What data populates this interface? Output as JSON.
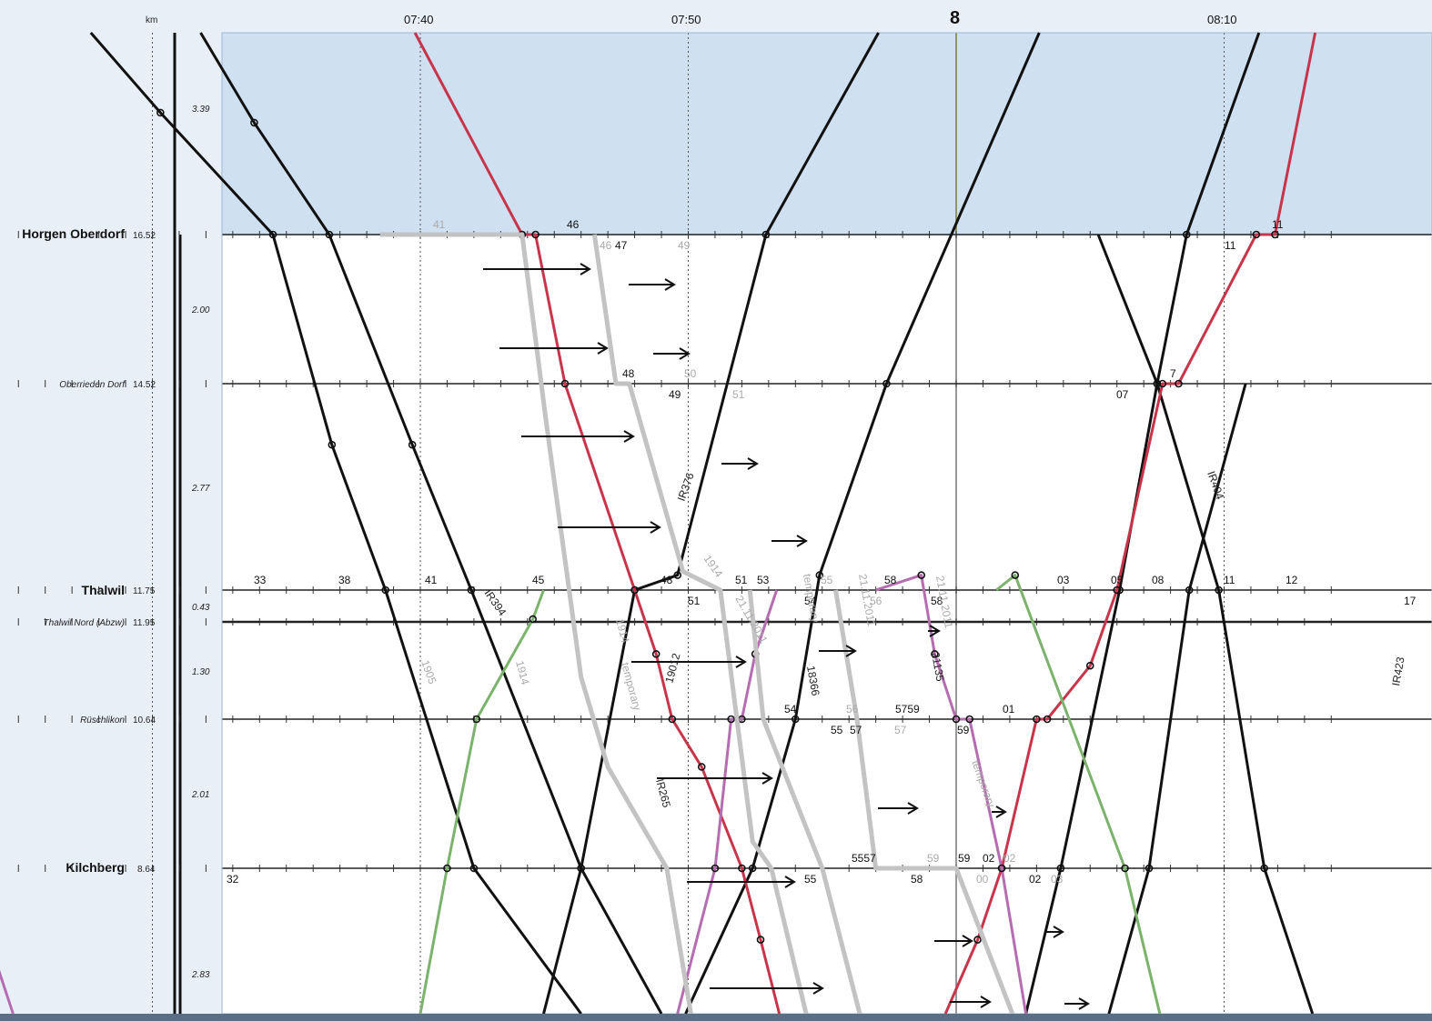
{
  "header": {
    "km_unit": "km",
    "hour_label": "8",
    "time_ticks": [
      "07:40",
      "07:50",
      "08:10"
    ]
  },
  "stations": [
    {
      "name": "Horgen Oberdorf",
      "km": "16.52",
      "major": true
    },
    {
      "name": "Oberrieden Dorf",
      "km": "14.52",
      "major": false
    },
    {
      "name": "Thalwil",
      "km": "11.75",
      "major": true
    },
    {
      "name": "Thalwil Nord (Abzw)",
      "km": "11.95",
      "major": false
    },
    {
      "name": "Rüschlikon",
      "km": "10.64",
      "major": false
    },
    {
      "name": "Kilchberg",
      "km": "8.64",
      "major": true
    }
  ],
  "segment_distances": [
    "3.39",
    "2.00",
    "2.77",
    "0.43",
    "1.30",
    "2.01",
    "2.83"
  ],
  "colors": {
    "background": "#e9eff7",
    "occupied_block": "#cfe0f1",
    "black_train": "#111111",
    "red_train": "#c8354a",
    "green_train": "#7cb36c",
    "purple_train": "#b56cb0",
    "grey_train": "#c3c3c3",
    "status_bar": "#5a6f86"
  },
  "chart_data": {
    "type": "line",
    "title": "",
    "xlabel": "",
    "ylabel": "km",
    "x_unit": "minutes after 07:30",
    "xlim": [
      -7.4,
      44.5
    ],
    "series": [
      {
        "color": "black",
        "points": [
          [
            -2.3,
            24.6
          ],
          [
            0.3,
            21.4
          ],
          [
            4.5,
            16.52
          ],
          [
            6.7,
            13.7
          ],
          [
            8.7,
            11.75
          ],
          [
            12.0,
            8.64
          ],
          [
            16.0,
            5.1
          ]
        ]
      },
      {
        "color": "black",
        "points": [
          [
            1.8,
            24.6
          ],
          [
            3.8,
            21.0
          ],
          [
            6.6,
            16.52
          ],
          [
            9.7,
            13.7
          ],
          [
            11.9,
            11.75
          ],
          [
            16.0,
            8.64
          ],
          [
            19.0,
            5.3
          ]
        ]
      },
      {
        "color": "black",
        "points": [
          [
            19.9,
            5.3
          ],
          [
            22.4,
            8.64
          ],
          [
            24.0,
            10.64
          ],
          [
            24.9,
            11.95
          ],
          [
            27.4,
            14.52
          ],
          [
            33.1,
            24.6
          ]
        ]
      },
      {
        "color": "black",
        "points": [
          [
            14.6,
            5.3
          ],
          [
            16.0,
            8.64
          ],
          [
            18.0,
            11.75
          ],
          [
            19.6,
            11.95
          ],
          [
            22.9,
            16.52
          ],
          [
            27.1,
            24.6
          ]
        ]
      },
      {
        "color": "black",
        "points": [
          [
            41.3,
            24.6
          ],
          [
            38.6,
            16.52
          ],
          [
            37.5,
            14.52
          ],
          [
            36.1,
            11.75
          ],
          [
            33.9,
            8.64
          ],
          [
            32.6,
            5.3
          ]
        ]
      },
      {
        "color": "black",
        "points": [
          [
            43.3,
            5.3
          ],
          [
            41.5,
            8.64
          ],
          [
            39.8,
            11.75
          ],
          [
            37.5,
            14.52
          ],
          [
            35.3,
            16.52
          ]
        ]
      },
      {
        "color": "black",
        "points": [
          [
            35.7,
            5.3
          ],
          [
            37.2,
            8.64
          ],
          [
            38.7,
            11.75
          ],
          [
            40.8,
            14.52
          ]
        ]
      },
      {
        "color": "red",
        "points": [
          [
            9.8,
            24.6
          ],
          [
            13.8,
            16.52
          ],
          [
            14.3,
            16.52
          ],
          [
            15.4,
            14.52
          ],
          [
            18.0,
            11.75
          ],
          [
            18.8,
            11.2
          ],
          [
            19.4,
            10.64
          ],
          [
            20.5,
            10.0
          ],
          [
            22.0,
            8.64
          ],
          [
            22.7,
            7.0
          ],
          [
            23.4,
            5.3
          ]
        ]
      },
      {
        "color": "red",
        "points": [
          [
            43.4,
            24.6
          ],
          [
            41.9,
            16.52
          ],
          [
            41.2,
            16.52
          ],
          [
            38.3,
            14.52
          ],
          [
            37.7,
            14.52
          ],
          [
            36.0,
            11.75
          ],
          [
            35.0,
            11.1
          ],
          [
            33.4,
            10.64
          ],
          [
            33.0,
            10.64
          ],
          [
            31.7,
            8.64
          ],
          [
            30.8,
            7.0
          ],
          [
            29.6,
            5.3
          ]
        ]
      },
      {
        "color": "green",
        "points": [
          [
            10.0,
            5.3
          ],
          [
            11.0,
            8.64
          ],
          [
            12.1,
            10.64
          ],
          [
            14.2,
            11.5
          ],
          [
            14.6,
            11.75
          ]
        ]
      },
      {
        "color": "green",
        "points": [
          [
            31.5,
            11.75
          ],
          [
            32.2,
            11.95
          ],
          [
            36.3,
            8.64
          ],
          [
            37.6,
            5.3
          ]
        ]
      },
      {
        "color": "purple",
        "points": [
          [
            -7.0,
            11.75
          ],
          [
            -6.4,
            11.75
          ]
        ]
      },
      {
        "color": "purple",
        "points": [
          [
            -7.0,
            8.64
          ],
          [
            -5.2,
            5.3
          ]
        ]
      },
      {
        "color": "purple",
        "points": [
          [
            19.6,
            5.3
          ],
          [
            21.0,
            8.64
          ],
          [
            21.6,
            10.64
          ],
          [
            22.0,
            10.64
          ],
          [
            22.5,
            11.2
          ],
          [
            23.3,
            11.75
          ]
        ]
      },
      {
        "color": "purple",
        "points": [
          [
            27.0,
            11.75
          ],
          [
            28.7,
            11.95
          ],
          [
            29.2,
            11.2
          ],
          [
            30.0,
            10.64
          ],
          [
            30.5,
            10.64
          ],
          [
            31.7,
            8.64
          ],
          [
            32.6,
            5.3
          ]
        ]
      },
      {
        "color": "grey",
        "points": [
          [
            8.5,
            16.52
          ],
          [
            13.8,
            16.52
          ],
          [
            14.7,
            14.0
          ],
          [
            16.0,
            11.0
          ],
          [
            17.0,
            10.0
          ],
          [
            19.2,
            8.64
          ],
          [
            20.1,
            5.3
          ]
        ]
      },
      {
        "color": "grey",
        "points": [
          [
            16.5,
            16.52
          ],
          [
            17.3,
            14.52
          ],
          [
            17.8,
            14.52
          ],
          [
            19.8,
            12.0
          ],
          [
            21.2,
            11.75
          ],
          [
            22.4,
            9.0
          ],
          [
            23.1,
            8.64
          ],
          [
            24.4,
            5.3
          ]
        ]
      },
      {
        "color": "grey",
        "points": [
          [
            22.3,
            11.75
          ],
          [
            22.8,
            10.64
          ],
          [
            25.0,
            8.64
          ],
          [
            26.4,
            5.3
          ]
        ]
      },
      {
        "color": "grey",
        "points": [
          [
            25.5,
            11.75
          ],
          [
            26.3,
            10.64
          ],
          [
            27.0,
            8.64
          ],
          [
            30.0,
            8.64
          ],
          [
            32.1,
            5.3
          ]
        ]
      }
    ]
  },
  "minute_labels": [
    {
      "text": "46"
    },
    {
      "text": "47"
    },
    {
      "text": "48"
    },
    {
      "text": "49"
    },
    {
      "text": "11"
    },
    {
      "text": "11"
    },
    {
      "text": "07"
    },
    {
      "text": "7"
    },
    {
      "text": "33"
    },
    {
      "text": "38"
    },
    {
      "text": "41"
    },
    {
      "text": "45"
    },
    {
      "text": "48"
    },
    {
      "text": "51"
    },
    {
      "text": "53"
    },
    {
      "text": "58"
    },
    {
      "text": "03"
    },
    {
      "text": "05"
    },
    {
      "text": "08"
    },
    {
      "text": "11"
    },
    {
      "text": "12"
    },
    {
      "text": "51"
    },
    {
      "text": "54"
    },
    {
      "text": "17"
    },
    {
      "text": "54"
    },
    {
      "text": "55"
    },
    {
      "text": "57"
    },
    {
      "text": "5759"
    },
    {
      "text": "01"
    },
    {
      "text": "59"
    },
    {
      "text": "5557"
    },
    {
      "text": "59"
    },
    {
      "text": "02"
    },
    {
      "text": "02"
    },
    {
      "text": "58"
    },
    {
      "text": "55"
    },
    {
      "text": "32"
    },
    {
      "text": "58"
    }
  ],
  "grey_minute_labels": [
    {
      "text": "41"
    },
    {
      "text": "46"
    },
    {
      "text": "49"
    },
    {
      "text": "50"
    },
    {
      "text": "51"
    },
    {
      "text": "55"
    },
    {
      "text": "56"
    },
    {
      "text": "56"
    },
    {
      "text": "57"
    },
    {
      "text": "59"
    },
    {
      "text": "00"
    },
    {
      "text": "02"
    },
    {
      "text": "03"
    }
  ],
  "train_numbers": [
    {
      "text": "IR376"
    },
    {
      "text": "IR404"
    },
    {
      "text": "IR423"
    },
    {
      "text": "IR265"
    },
    {
      "text": "IR394"
    },
    {
      "text": "1914"
    },
    {
      "text": "18366"
    },
    {
      "text": "19012"
    },
    {
      "text": "21135"
    }
  ],
  "grey_annotations": [
    {
      "text": "temporary"
    },
    {
      "text": "21.11.2011"
    },
    {
      "text": "temporary"
    },
    {
      "text": "21.11.2011"
    },
    {
      "text": "1914"
    },
    {
      "text": "1914"
    },
    {
      "text": "temporary"
    },
    {
      "text": "1905"
    },
    {
      "text": "21.11.2011"
    }
  ]
}
